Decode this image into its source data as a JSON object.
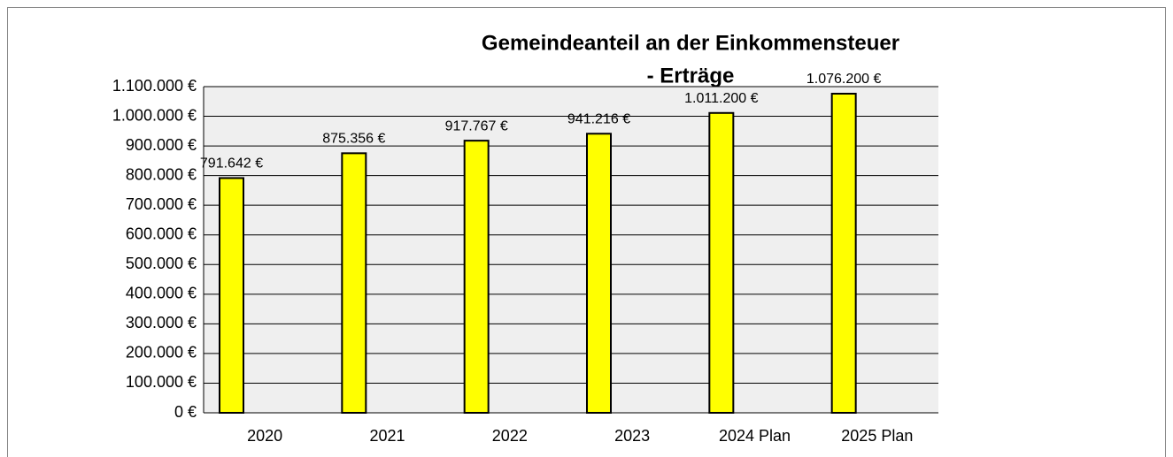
{
  "chart_data": {
    "type": "bar",
    "title": [
      "Gemeindeanteil an der Einkommensteuer",
      "- Erträge"
    ],
    "categories": [
      "2020",
      "2021",
      "2022",
      "2023",
      "2024 Plan",
      "2025 Plan"
    ],
    "values": [
      791642,
      875356,
      917767,
      941216,
      1011200,
      1076200
    ],
    "value_labels": [
      "791.642 €",
      "875.356 €",
      "917.767 €",
      "941.216 €",
      "1.011.200 €",
      "1.076.200 €"
    ],
    "color": "#ffff00",
    "ylim": [
      0,
      1100000
    ],
    "yticks": [
      {
        "value": 0,
        "label": "0 €"
      },
      {
        "value": 100000,
        "label": "100.000 €"
      },
      {
        "value": 200000,
        "label": "200.000 €"
      },
      {
        "value": 300000,
        "label": "300.000 €"
      },
      {
        "value": 400000,
        "label": "400.000 €"
      },
      {
        "value": 500000,
        "label": "500.000 €"
      },
      {
        "value": 600000,
        "label": "600.000 €"
      },
      {
        "value": 700000,
        "label": "700.000 €"
      },
      {
        "value": 800000,
        "label": "800.000 €"
      },
      {
        "value": 900000,
        "label": "900.000 €"
      },
      {
        "value": 1000000,
        "label": "1.000.000 €"
      },
      {
        "value": 1100000,
        "label": "1.100.000 €"
      }
    ],
    "grid": true
  }
}
